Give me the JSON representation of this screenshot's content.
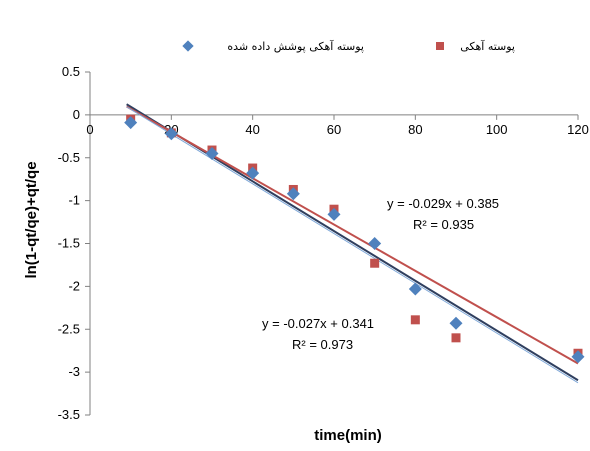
{
  "chart_data": {
    "type": "scatter",
    "xlabel": "time(min)",
    "ylabel": "ln(1-qt/qe)+qt/qe",
    "xlim": [
      0,
      120
    ],
    "ylim": [
      -3.5,
      0.5
    ],
    "x_ticks": [
      "0",
      "20",
      "40",
      "60",
      "80",
      "100",
      "120"
    ],
    "y_ticks": [
      "0.5",
      "0",
      "-0.5",
      "-1",
      "-1.5",
      "-2",
      "-2.5",
      "-3",
      "-3.5"
    ],
    "grid": false,
    "legend_position": "top",
    "series": [
      {
        "name": "پوسته آهکی پوشش داده شده",
        "marker": "diamond",
        "color": "#4F81BD",
        "x": [
          10,
          20,
          30,
          40,
          50,
          60,
          70,
          80,
          90,
          120
        ],
        "y": [
          -0.09,
          -0.22,
          -0.45,
          -0.68,
          -0.92,
          -1.16,
          -1.5,
          -2.03,
          -2.43,
          -2.82
        ],
        "trendline": {
          "slope": -0.029,
          "intercept": 0.385,
          "color": "#2F3F5F"
        },
        "equation": "y = -0.029x + 0.385",
        "r2": "R² = 0.935"
      },
      {
        "name": "پوسته آهکی",
        "marker": "square",
        "color": "#C0504D",
        "x": [
          10,
          20,
          30,
          40,
          50,
          60,
          70,
          80,
          90,
          120
        ],
        "y": [
          -0.05,
          -0.21,
          -0.41,
          -0.62,
          -0.87,
          -1.1,
          -1.73,
          -2.39,
          -2.6,
          -2.78
        ],
        "trendline": {
          "slope": -0.027,
          "intercept": 0.341,
          "color": "#C0504D"
        },
        "equation": "y = -0.027x + 0.341",
        "r2": "R² = 0.973"
      }
    ]
  }
}
